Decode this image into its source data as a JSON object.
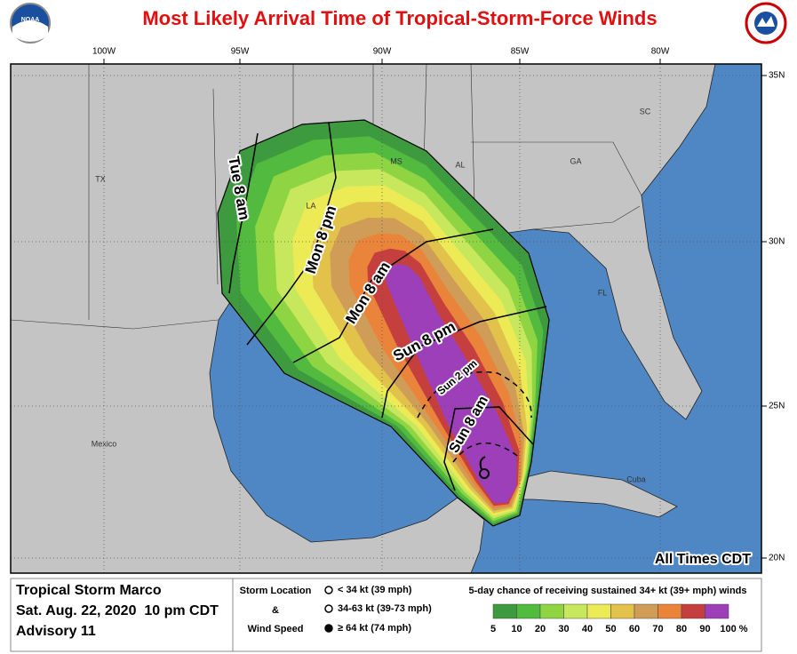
{
  "header": {
    "title": "Most Likely Arrival Time of Tropical-Storm-Force Winds",
    "logo_left": "NOAA"
  },
  "map": {
    "longitude_labels": [
      "100W",
      "95W",
      "90W",
      "85W",
      "80W"
    ],
    "latitude_labels": [
      "35N",
      "30N",
      "25N",
      "20N"
    ],
    "region_labels": [
      "TX",
      "LA",
      "MS",
      "AL",
      "GA",
      "SC",
      "FL",
      "Mexico",
      "Cuba"
    ],
    "arrival_times": [
      "Tue 8 am",
      "Mon 8 pm",
      "Mon 8 am",
      "Sun 8 pm",
      "Sun 2 pm",
      "Sun 8 am"
    ],
    "time_note": "All Times CDT"
  },
  "footer": {
    "storm_name": "Tropical Storm Marco",
    "issued": "Sat. Aug. 22, 2020  10 pm CDT",
    "advisory": "Advisory 11",
    "symbol_key_title": [
      "Storm Location",
      "&",
      "Wind Speed"
    ],
    "symbol_key": [
      "< 34 kt (39 mph)",
      "34-63 kt (39-73 mph)",
      "≥ 64 kt (74 mph)"
    ],
    "scale_title": "5-day chance of receiving sustained 34+ kt (39+ mph) winds",
    "scale_labels": [
      "5",
      "10",
      "20",
      "30",
      "40",
      "50",
      "60",
      "70",
      "80",
      "90",
      "100 %"
    ],
    "scale_colors": [
      "#3e9a3e",
      "#52bb3f",
      "#8fd443",
      "#c7e75c",
      "#ecea55",
      "#e3c24c",
      "#cf9d57",
      "#ea843a",
      "#c53f3f",
      "#a03e55",
      "#9c3fb8"
    ]
  }
}
